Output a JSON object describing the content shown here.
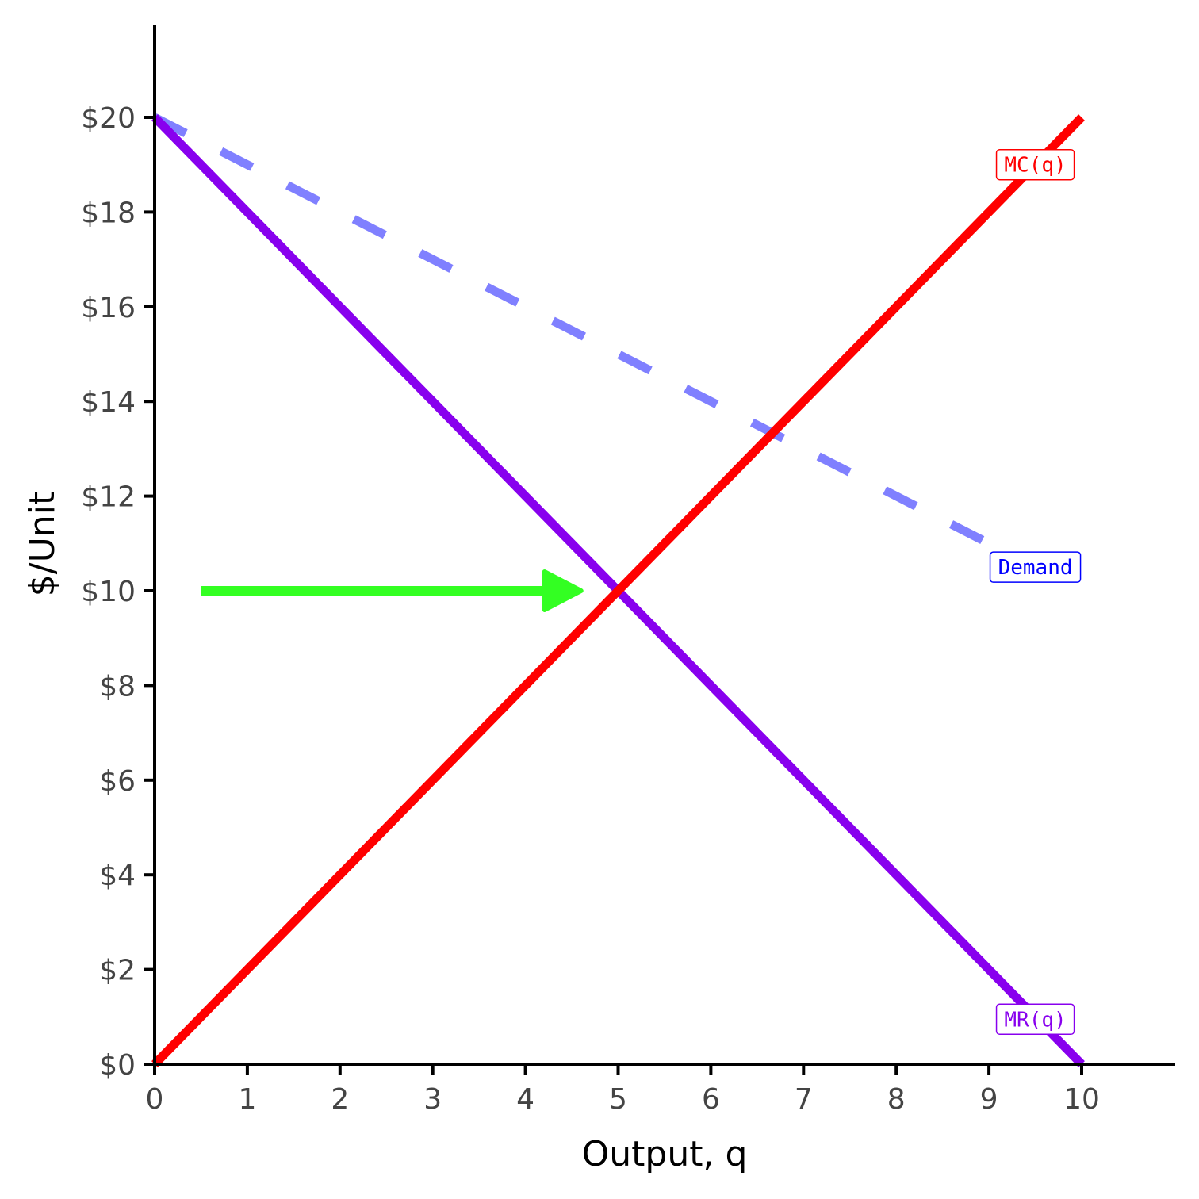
{
  "chart_data": {
    "type": "line",
    "xlabel": "Output, q",
    "ylabel": "$/Unit",
    "xlim": [
      0,
      11
    ],
    "ylim": [
      0,
      22
    ],
    "x_ticks": [
      0,
      1,
      2,
      3,
      4,
      5,
      6,
      7,
      8,
      9,
      10
    ],
    "x_tick_labels": [
      "0",
      "1",
      "2",
      "3",
      "4",
      "5",
      "6",
      "7",
      "8",
      "9",
      "10"
    ],
    "y_ticks": [
      0,
      2,
      4,
      6,
      8,
      10,
      12,
      14,
      16,
      18,
      20
    ],
    "y_tick_labels": [
      "$0",
      "$2",
      "$4",
      "$6",
      "$8",
      "$10",
      "$12",
      "$14",
      "$16",
      "$18",
      "$20"
    ],
    "grid": false,
    "series": [
      {
        "name": "Demand",
        "color": "#8080ff",
        "label_color": "#0000ff",
        "style": "dashed",
        "x": [
          0,
          9
        ],
        "y": [
          20,
          11
        ],
        "label_at": [
          9.5,
          10.5
        ]
      },
      {
        "name": "MR(q)",
        "color": "#8800ee",
        "label_color": "#8800ee",
        "style": "solid",
        "x": [
          0,
          10
        ],
        "y": [
          20,
          0
        ],
        "label_at": [
          9.5,
          0.95
        ]
      },
      {
        "name": "MC(q)",
        "color": "#ff0000",
        "label_color": "#ff0000",
        "style": "solid",
        "x": [
          0,
          10
        ],
        "y": [
          0,
          20
        ],
        "label_at": [
          9.5,
          19
        ]
      }
    ],
    "annotations": [
      {
        "type": "arrow",
        "color": "#33ff22",
        "x_start": 0.5,
        "x_end": 4.6,
        "y": 10
      }
    ]
  }
}
